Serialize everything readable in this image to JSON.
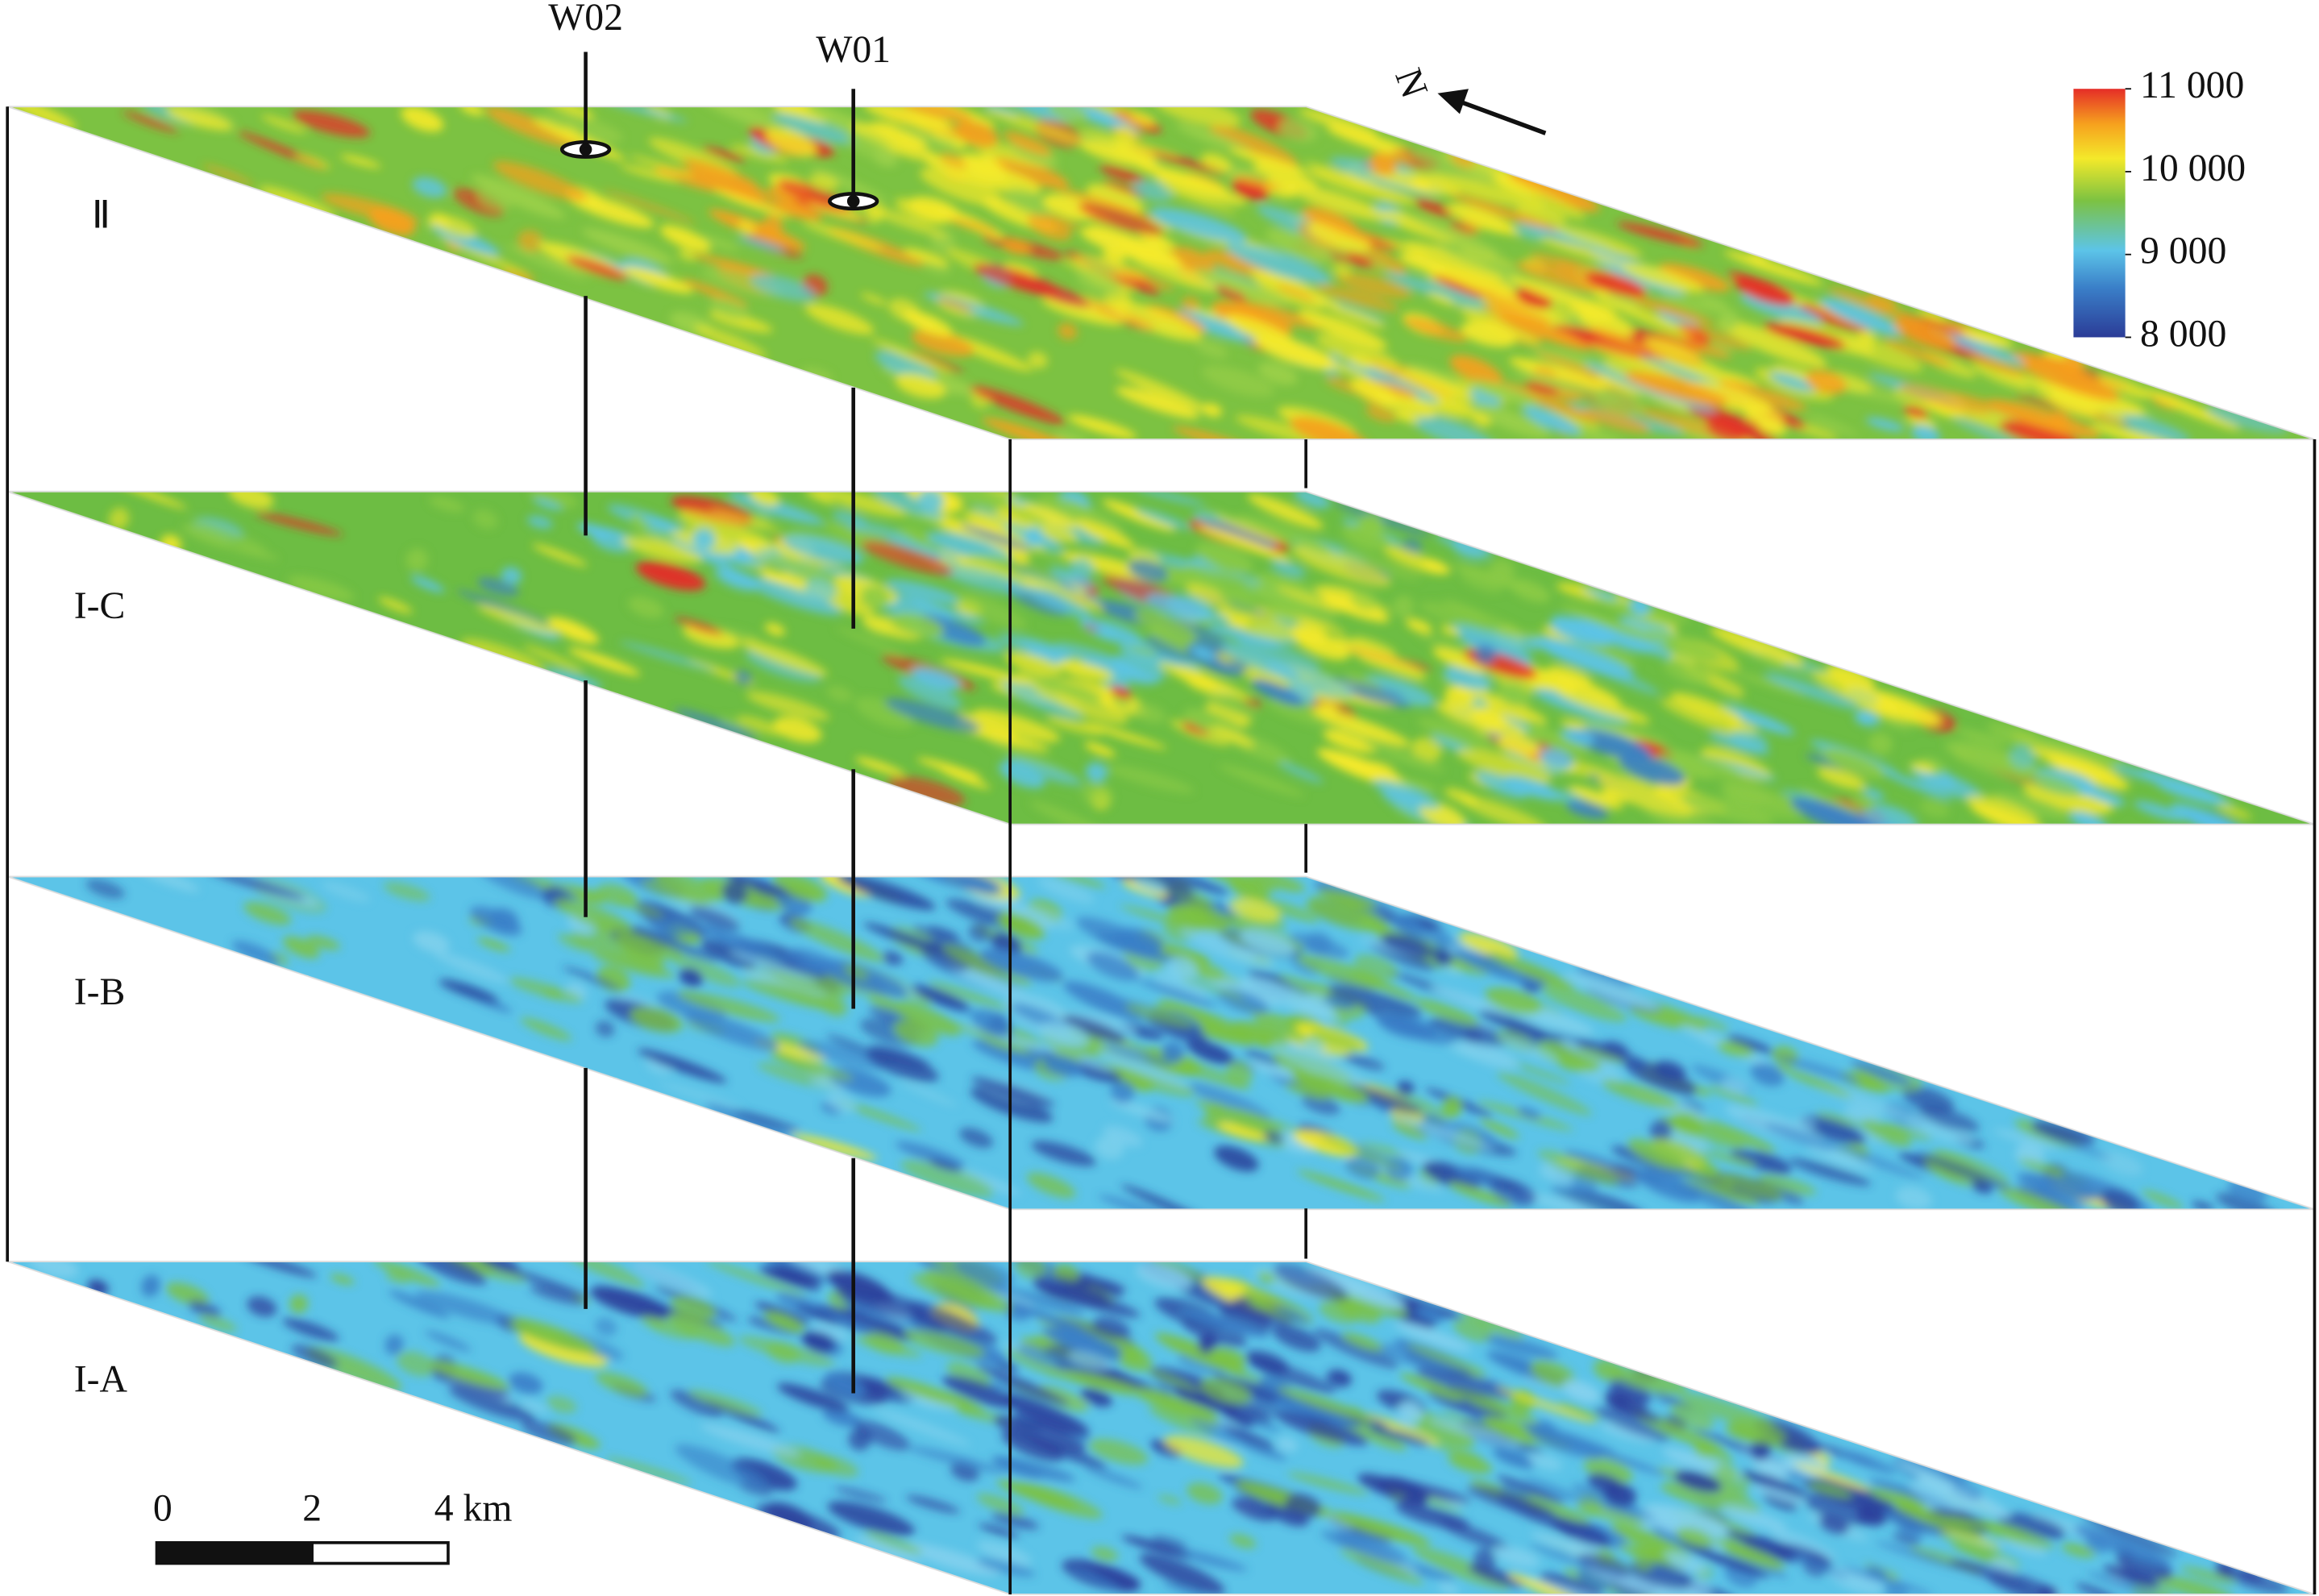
{
  "wells": [
    {
      "label": "W02"
    },
    {
      "label": "W01"
    }
  ],
  "north_label": "N",
  "layers": [
    {
      "label": "Ⅱ"
    },
    {
      "label": "I-C"
    },
    {
      "label": "I-B"
    },
    {
      "label": "I-A"
    }
  ],
  "colorbar": {
    "range": [
      8000,
      11000
    ],
    "ticks": [
      {
        "value": 11000,
        "label": "11 000"
      },
      {
        "value": 10000,
        "label": "10 000"
      },
      {
        "value": 9000,
        "label": "9 000"
      },
      {
        "value": 8000,
        "label": "8 000"
      }
    ]
  },
  "scale_bar": {
    "labels": [
      "0",
      "2",
      "4 km"
    ]
  }
}
